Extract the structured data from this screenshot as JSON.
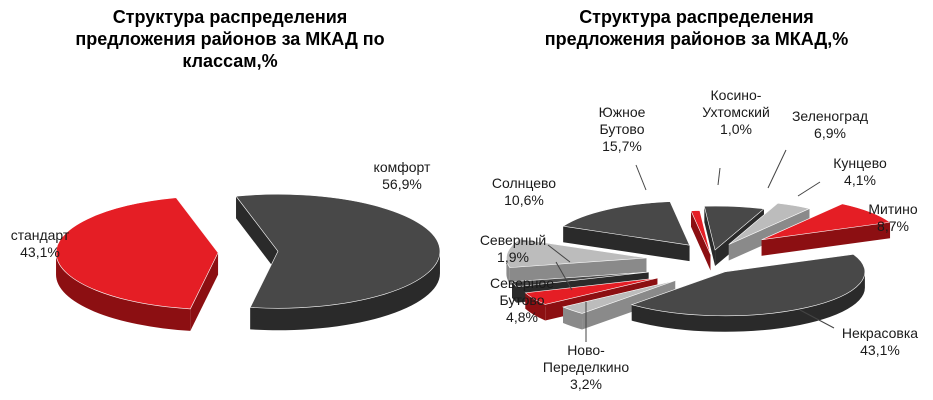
{
  "colors": {
    "gray": "#484848",
    "gray_side": "#2a2a2a",
    "red": "#e51e25",
    "red_side": "#8c0f12",
    "light": "#bcbcbc",
    "light_side": "#8a8a8a"
  },
  "chart_data": [
    {
      "type": "pie",
      "title": "Структура  распределения\nпредложения районов за МКАД по\nклассам,%",
      "slices": [
        {
          "label": "комфорт",
          "value": 56.9,
          "value_label": "56,9%",
          "color": "gray"
        },
        {
          "label": "стандарт",
          "value": 43.1,
          "value_label": "43,1%",
          "color": "red"
        }
      ]
    },
    {
      "type": "pie",
      "title": "Структура  распределения\nпредложения районов за МКАД,%",
      "slices": [
        {
          "label": "Косино-\nУхтомский",
          "value": 1.0,
          "value_label": "1,0%",
          "color": "red"
        },
        {
          "label": "Зеленоград",
          "value": 6.9,
          "value_label": "6,9%",
          "color": "gray"
        },
        {
          "label": "Кунцево",
          "value": 4.1,
          "value_label": "4,1%",
          "color": "light"
        },
        {
          "label": "Митино",
          "value": 8.7,
          "value_label": "8,7%",
          "color": "red"
        },
        {
          "label": "Некрасовка",
          "value": 43.1,
          "value_label": "43,1%",
          "color": "gray"
        },
        {
          "label": "Ново-\nПеределкино",
          "value": 3.2,
          "value_label": "3,2%",
          "color": "light"
        },
        {
          "label": "Северное\nБутово",
          "value": 4.8,
          "value_label": "4,8%",
          "color": "red"
        },
        {
          "label": "Северный",
          "value": 1.9,
          "value_label": "1,9%",
          "color": "gray"
        },
        {
          "label": "Солнцево",
          "value": 10.6,
          "value_label": "10,6%",
          "color": "light"
        },
        {
          "label": "Южное\nБутово",
          "value": 15.7,
          "value_label": "15,7%",
          "color": "gray"
        }
      ]
    }
  ]
}
